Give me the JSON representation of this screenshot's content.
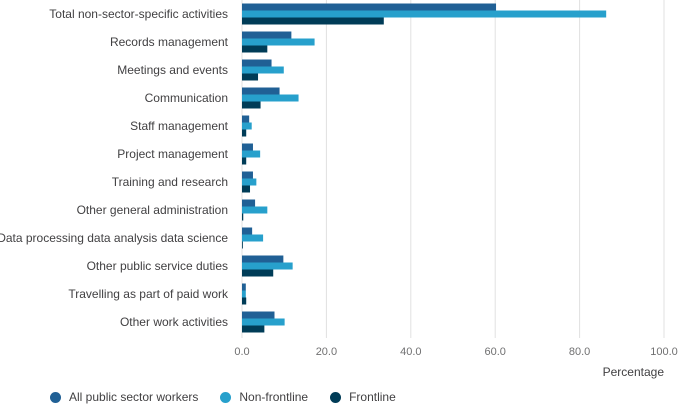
{
  "colors": {
    "all": "#206095",
    "nonfrontline": "#27a0cc",
    "frontline": "#003c57",
    "grid": "#e0e0e0",
    "text": "#414042"
  },
  "chart_data": {
    "type": "bar",
    "orientation": "horizontal",
    "title": "",
    "xlabel": "Percentage",
    "ylabel": "",
    "xlim": [
      0,
      100
    ],
    "xticks": [
      "0.0",
      "20.0",
      "40.0",
      "60.0",
      "80.0",
      "100.0"
    ],
    "tick_values": [
      0,
      20,
      40,
      60,
      80,
      100
    ],
    "grid": true,
    "legend_position": "bottom-left",
    "categories": [
      "Total non-sector-specific activities",
      "Records management",
      "Meetings and events",
      "Communication",
      "Staff management",
      "Project management",
      "Training and research",
      "Other general administration",
      "Data processing data analysis data science",
      "Other public service duties",
      "Travelling as part of paid work",
      "Other work activities"
    ],
    "series": [
      {
        "name": "All public sector workers",
        "color": "#206095",
        "values": [
          60.2,
          11.7,
          7.0,
          8.9,
          1.7,
          2.6,
          2.6,
          3.1,
          2.4,
          9.8,
          0.9,
          7.7
        ]
      },
      {
        "name": "Non-frontline",
        "color": "#27a0cc",
        "values": [
          86.3,
          17.2,
          9.9,
          13.4,
          2.3,
          4.3,
          3.4,
          6.0,
          5.0,
          12.0,
          0.9,
          10.1
        ]
      },
      {
        "name": "Frontline",
        "color": "#003c57",
        "values": [
          33.6,
          6.0,
          3.8,
          4.4,
          1.0,
          1.0,
          1.9,
          0.3,
          0.2,
          7.4,
          1.0,
          5.3
        ]
      }
    ]
  }
}
